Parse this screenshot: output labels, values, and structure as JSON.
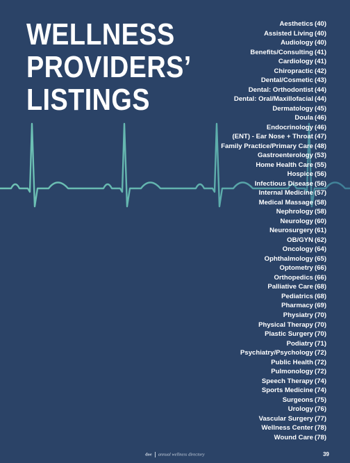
{
  "title": {
    "line1": "WELLNESS",
    "line2": "PROVIDERS’",
    "line3": "LISTINGS"
  },
  "listings": [
    {
      "name": "Aesthetics",
      "page": "(40)"
    },
    {
      "name": "Assisted Living",
      "page": "(40)"
    },
    {
      "name": "Audiology",
      "page": "(40)"
    },
    {
      "name": "Benefits/Consulting",
      "page": "(41)"
    },
    {
      "name": "Cardiology",
      "page": "(41)"
    },
    {
      "name": "Chiropractic",
      "page": "(42)"
    },
    {
      "name": "Dental/Cosmetic",
      "page": "(43)"
    },
    {
      "name": "Dental: Orthodontist",
      "page": "(44)"
    },
    {
      "name": "Dental: Oral/Maxillofacial",
      "page": "(44)"
    },
    {
      "name": "Dermatology",
      "page": "(45)"
    },
    {
      "name": "Doula",
      "page": "(46)"
    },
    {
      "name": "Endocrinology",
      "page": "(46)"
    },
    {
      "name": "(ENT) - Ear Nose + Throat",
      "page": "(47)"
    },
    {
      "name": "Family Practice/Primary Care",
      "page": "(48)"
    },
    {
      "name": "Gastroenterology",
      "page": "(53)"
    },
    {
      "name": "Home Health Care",
      "page": "(55)"
    },
    {
      "name": "Hospice",
      "page": "(56)"
    },
    {
      "name": "Infectious Disease",
      "page": "(56)"
    },
    {
      "name": "Internal Medicine",
      "page": "(57)"
    },
    {
      "name": "Medical Massage",
      "page": "(58)"
    },
    {
      "name": "Nephrology",
      "page": "(58)"
    },
    {
      "name": "Neurology",
      "page": "(60)"
    },
    {
      "name": "Neurosurgery",
      "page": "(61)"
    },
    {
      "name": "OB/GYN",
      "page": "(62)"
    },
    {
      "name": "Oncology",
      "page": "(64)"
    },
    {
      "name": "Ophthalmology",
      "page": "(65)"
    },
    {
      "name": "Optometry",
      "page": "(66)"
    },
    {
      "name": "Orthopedics",
      "page": "(66)"
    },
    {
      "name": "Palliative Care",
      "page": "(68)"
    },
    {
      "name": "Pediatrics",
      "page": "(68)"
    },
    {
      "name": "Pharmacy",
      "page": "(69)"
    },
    {
      "name": "Physiatry",
      "page": "(70)"
    },
    {
      "name": "Physical Therapy",
      "page": "(70)"
    },
    {
      "name": "Plastic Surgery",
      "page": "(70)"
    },
    {
      "name": "Podiatry",
      "page": "(71)"
    },
    {
      "name": "Psychiatry/Psychology",
      "page": "(72)"
    },
    {
      "name": "Public Health",
      "page": "(72)"
    },
    {
      "name": "Pulmonology",
      "page": "(72)"
    },
    {
      "name": "Speech Therapy",
      "page": "(74)"
    },
    {
      "name": "Sports Medicine",
      "page": "(74)"
    },
    {
      "name": "Surgeons",
      "page": "(75)"
    },
    {
      "name": "Urology",
      "page": "(76)"
    },
    {
      "name": "Vascular Surgery",
      "page": "(77)"
    },
    {
      "name": "Wellness Center",
      "page": "(78)"
    },
    {
      "name": "Wound Care",
      "page": "(78)"
    }
  ],
  "footer": {
    "brand": "doe",
    "publication": "annual wellness directory",
    "page_number": "39"
  },
  "colors": {
    "background": "#2b4367",
    "text": "#ffffff",
    "ekg_light": "#6fc3b5",
    "ekg_dark": "#3e7d96"
  }
}
